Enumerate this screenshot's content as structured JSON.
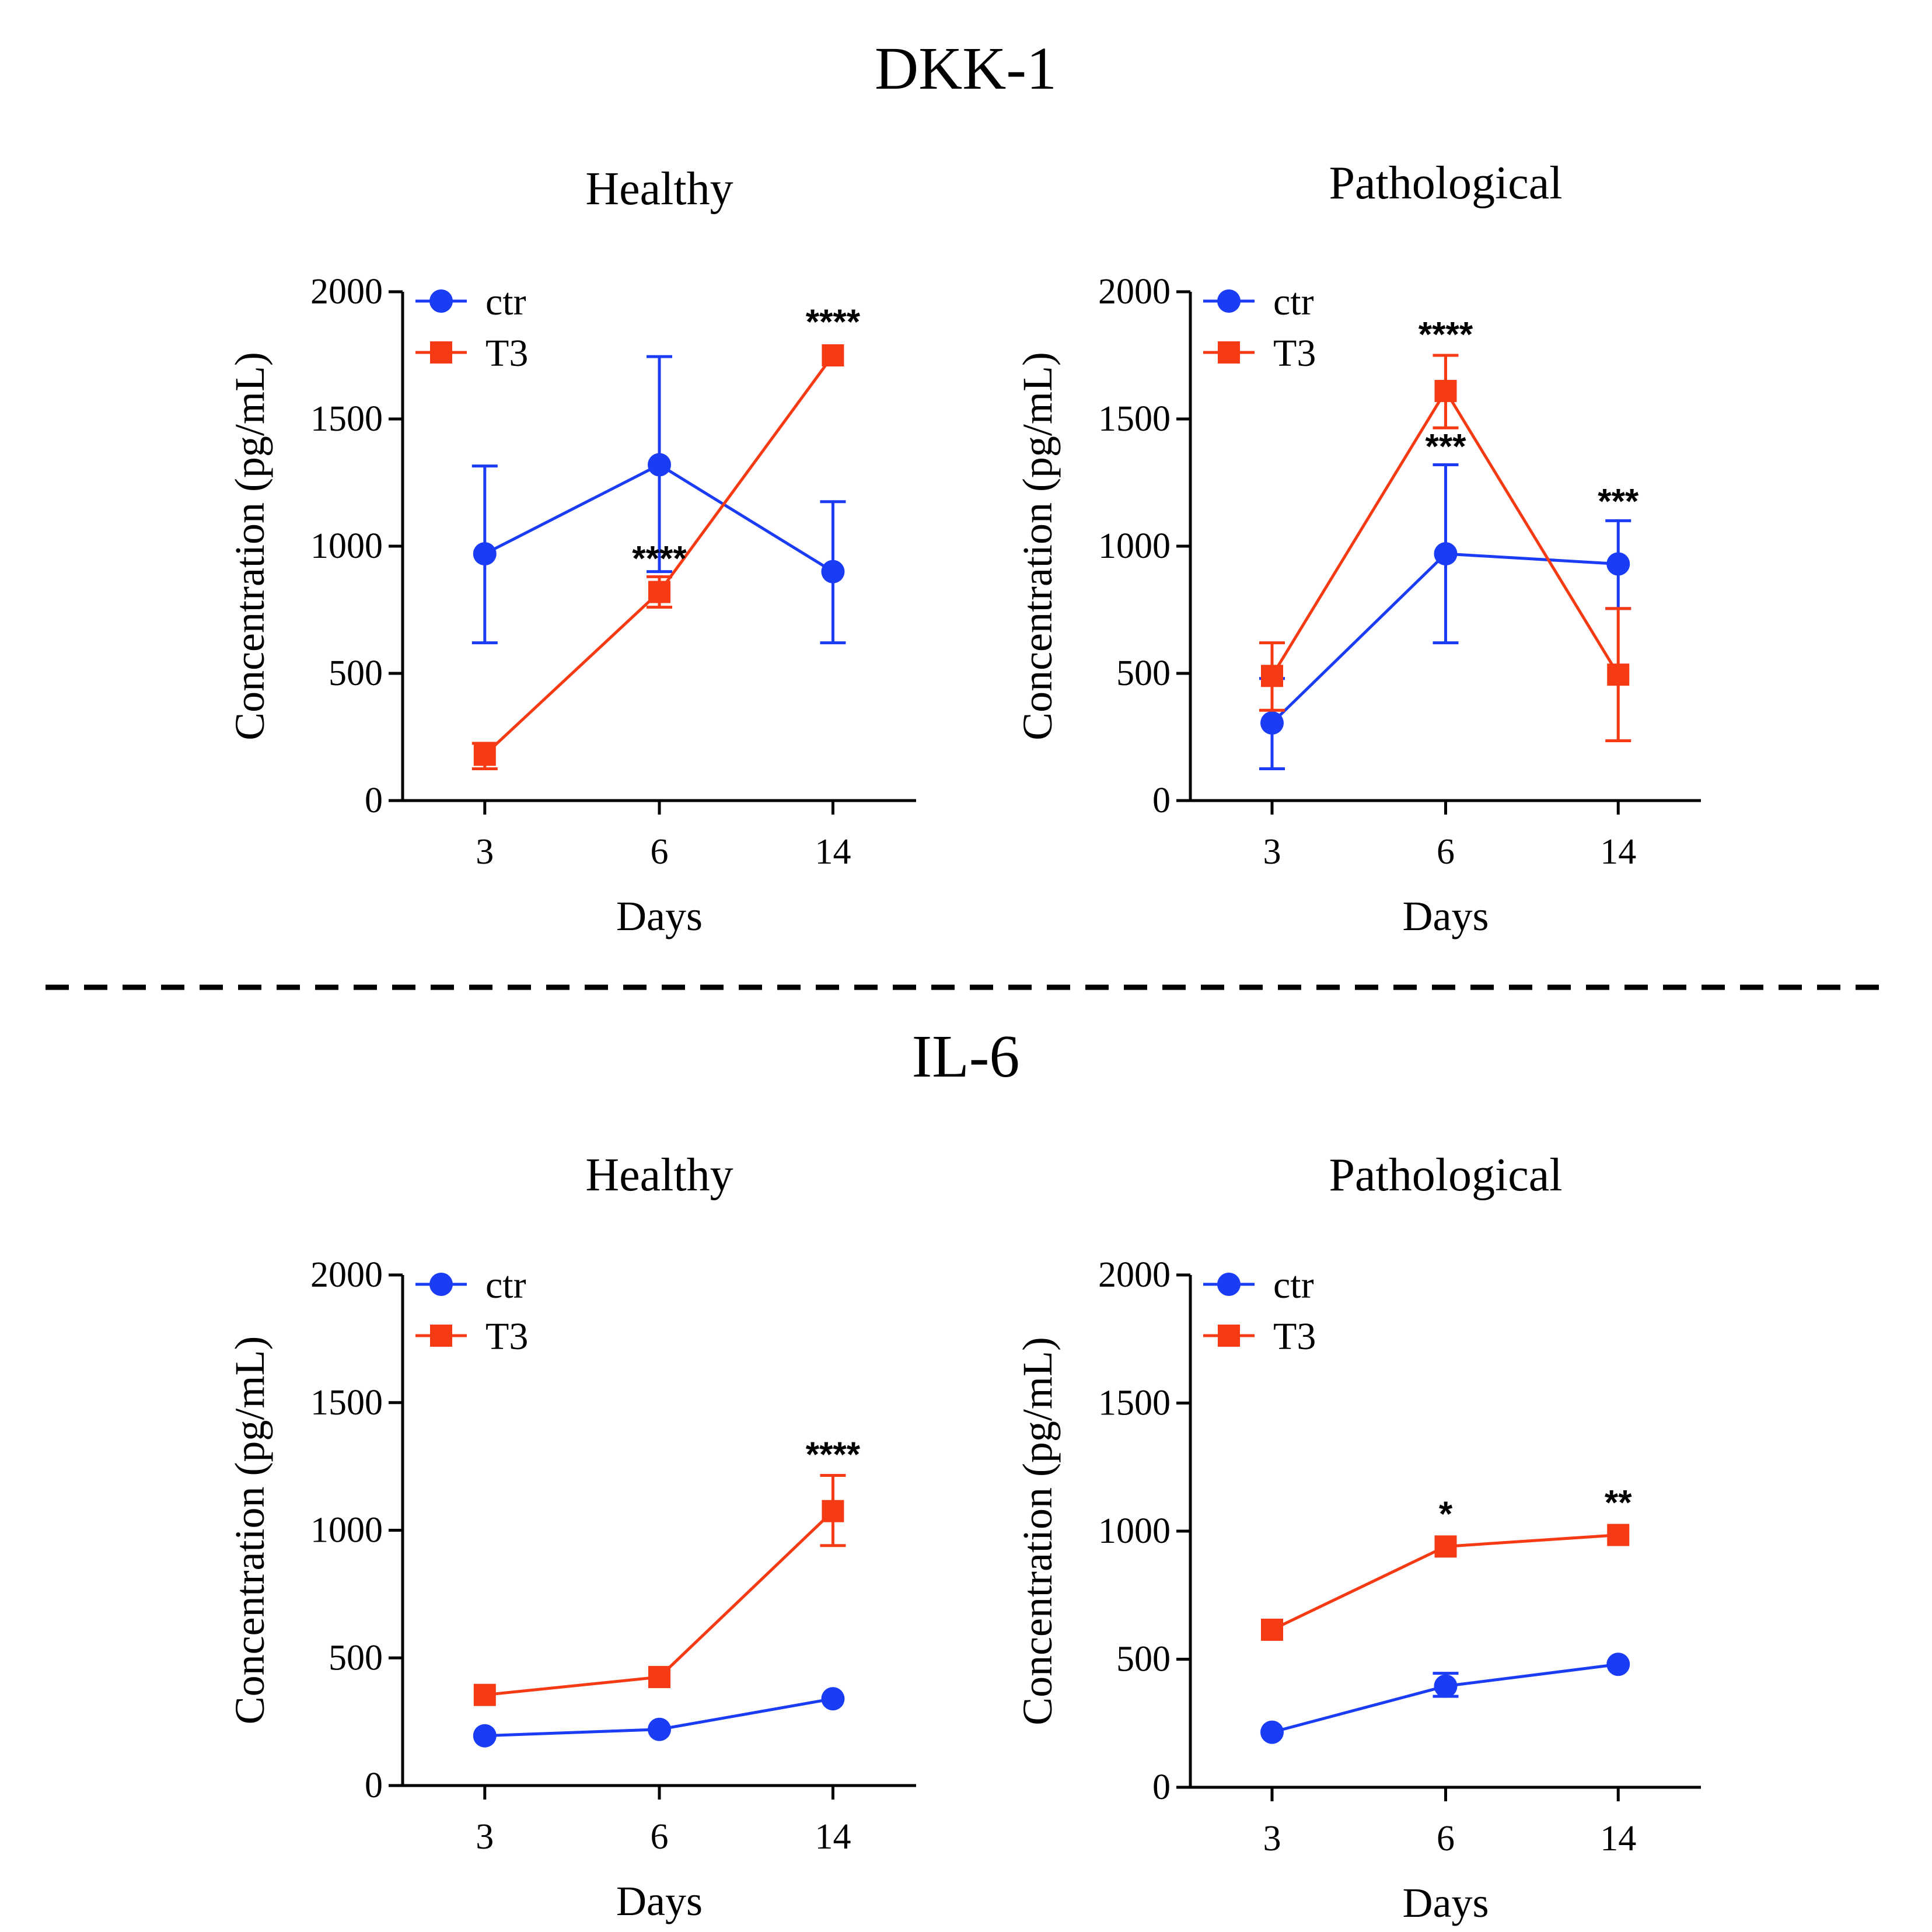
{
  "groups": [
    {
      "title": "DKK-1"
    },
    {
      "title": "IL-6"
    }
  ],
  "colors": {
    "ctr": "#1a3cf5",
    "T3": "#f53a14",
    "axis": "#000000"
  },
  "chart_data": [
    {
      "type": "line",
      "group": "DKK-1",
      "title": "Healthy",
      "xlabel": "Days",
      "ylabel": "Concentration (pg/mL)",
      "categories": [
        "3",
        "6",
        "14"
      ],
      "ylim": [
        0,
        2000
      ],
      "yticks": [
        0,
        500,
        1000,
        1500,
        2000
      ],
      "legend_position": "top-left",
      "series": [
        {
          "name": "ctr",
          "marker": "circle",
          "values": [
            970,
            1320,
            900
          ],
          "err_low": [
            620,
            900,
            620
          ],
          "err_high": [
            1315,
            1745,
            1175
          ]
        },
        {
          "name": "T3",
          "marker": "square",
          "values": [
            180,
            820,
            1750
          ],
          "err_low": [
            125,
            760,
            1750
          ],
          "err_high": [
            225,
            880,
            1750
          ]
        }
      ],
      "annotations": [
        {
          "text": "****",
          "category": "6",
          "y": 905
        },
        {
          "text": "****",
          "category": "14",
          "y": 1835
        }
      ]
    },
    {
      "type": "line",
      "group": "DKK-1",
      "title": "Pathological",
      "xlabel": "Days",
      "ylabel": "Concentration (pg/mL)",
      "categories": [
        "3",
        "6",
        "14"
      ],
      "ylim": [
        0,
        2000
      ],
      "yticks": [
        0,
        500,
        1000,
        1500,
        2000
      ],
      "legend_position": "top-left",
      "series": [
        {
          "name": "ctr",
          "marker": "circle",
          "values": [
            305,
            970,
            930
          ],
          "err_low": [
            125,
            620,
            755
          ],
          "err_high": [
            480,
            1320,
            1100
          ]
        },
        {
          "name": "T3",
          "marker": "square",
          "values": [
            490,
            1610,
            495
          ],
          "err_low": [
            355,
            1465,
            235
          ],
          "err_high": [
            620,
            1750,
            755
          ]
        }
      ],
      "annotations": [
        {
          "text": "****",
          "category": "6",
          "y": 1785
        },
        {
          "text": "***",
          "category": "6",
          "y": 1345
        },
        {
          "text": "***",
          "category": "14",
          "y": 1130
        }
      ]
    },
    {
      "type": "line",
      "group": "IL-6",
      "title": "Healthy",
      "xlabel": "Days",
      "ylabel": "Concentration (pg/mL)",
      "categories": [
        "3",
        "6",
        "14"
      ],
      "ylim": [
        0,
        2000
      ],
      "yticks": [
        0,
        500,
        1000,
        1500,
        2000
      ],
      "legend_position": "top-left",
      "series": [
        {
          "name": "ctr",
          "marker": "circle",
          "values": [
            195,
            220,
            340
          ],
          "err_low": [
            195,
            220,
            340
          ],
          "err_high": [
            195,
            220,
            340
          ]
        },
        {
          "name": "T3",
          "marker": "square",
          "values": [
            355,
            425,
            1075
          ],
          "err_low": [
            355,
            425,
            940
          ],
          "err_high": [
            355,
            425,
            1215
          ]
        }
      ],
      "annotations": [
        {
          "text": "****",
          "category": "14",
          "y": 1250
        }
      ]
    },
    {
      "type": "line",
      "group": "IL-6",
      "title": "Pathological",
      "xlabel": "Days",
      "ylabel": "Concentration (pg/mL)",
      "categories": [
        "3",
        "6",
        "14"
      ],
      "ylim": [
        0,
        2000
      ],
      "yticks": [
        0,
        500,
        1000,
        1500,
        2000
      ],
      "legend_position": "top-left",
      "series": [
        {
          "name": "ctr",
          "marker": "circle",
          "values": [
            215,
            395,
            480
          ],
          "err_low": [
            215,
            355,
            480
          ],
          "err_high": [
            215,
            445,
            480
          ]
        },
        {
          "name": "T3",
          "marker": "square",
          "values": [
            615,
            940,
            985
          ],
          "err_low": [
            615,
            940,
            985
          ],
          "err_high": [
            615,
            940,
            985
          ]
        }
      ],
      "annotations": [
        {
          "text": "*",
          "category": "6",
          "y": 1020
        },
        {
          "text": "**",
          "category": "14",
          "y": 1065
        }
      ]
    }
  ]
}
